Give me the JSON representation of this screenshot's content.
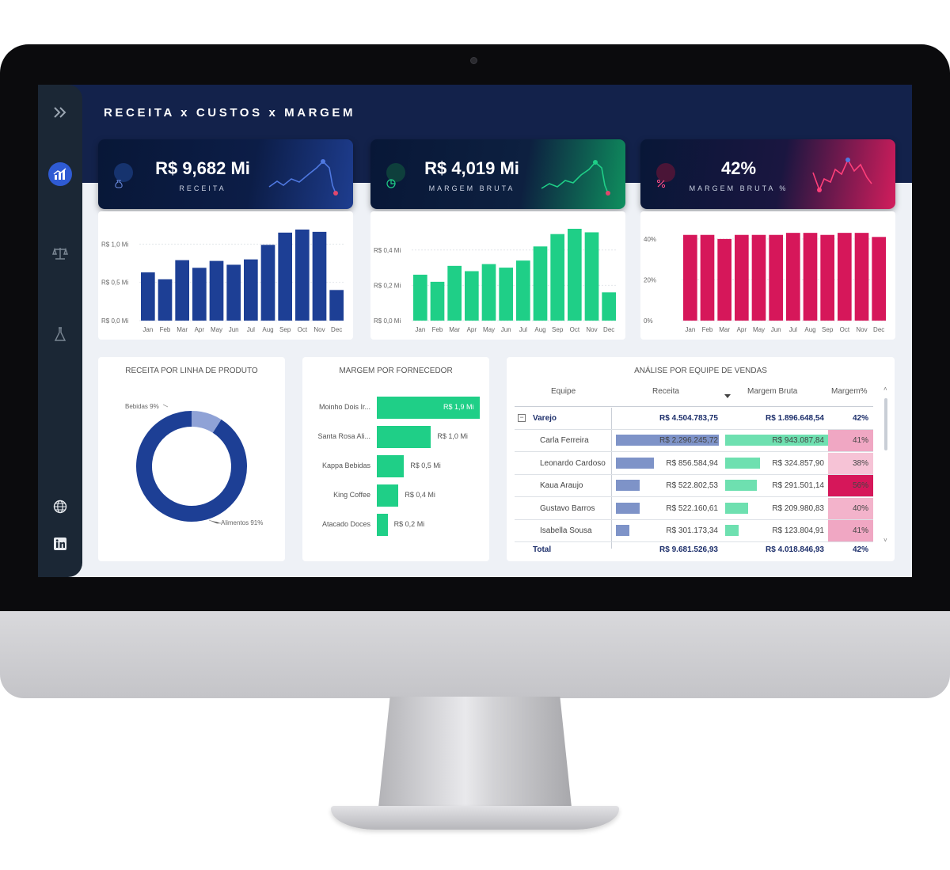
{
  "page": {
    "title": "RECEITA x CUSTOS x MARGEM"
  },
  "sidebar": {
    "items": [
      {
        "icon": "chevrons-right-icon"
      },
      {
        "icon": "bar-chart-icon",
        "active": true
      },
      {
        "icon": "scale-icon"
      },
      {
        "icon": "flask-icon"
      },
      {
        "icon": "globe-icon"
      },
      {
        "icon": "linkedin-icon"
      }
    ]
  },
  "kpis": {
    "receita": {
      "value": "R$ 9,682 Mi",
      "label": "RECEITA",
      "accent": "#2f5bd3",
      "icon": "money-bag-icon"
    },
    "margem": {
      "value": "R$ 4,019 Mi",
      "label": "MARGEM BRUTA",
      "accent": "#1fcf87",
      "icon": "pie-icon"
    },
    "percent": {
      "value": "42%",
      "label": "MARGEM BRUTA %",
      "accent": "#d6175a",
      "icon": "percent-icon"
    }
  },
  "chart_data": [
    {
      "type": "bar",
      "categories": [
        "Jan",
        "Feb",
        "Mar",
        "Apr",
        "May",
        "Jun",
        "Jul",
        "Aug",
        "Sep",
        "Oct",
        "Nov",
        "Dec"
      ],
      "values": [
        0.63,
        0.54,
        0.79,
        0.69,
        0.78,
        0.73,
        0.8,
        0.99,
        1.15,
        1.19,
        1.16,
        0.4
      ],
      "yticks": [
        "R$ 0,0 Mi",
        "R$ 0,5 Mi",
        "R$ 1,0 Mi"
      ],
      "ylim": [
        0,
        1.2
      ],
      "color": "#1d3f95"
    },
    {
      "type": "bar",
      "categories": [
        "Jan",
        "Feb",
        "Mar",
        "Apr",
        "May",
        "Jun",
        "Jul",
        "Aug",
        "Sep",
        "Oct",
        "Nov",
        "Dec"
      ],
      "values": [
        0.26,
        0.22,
        0.31,
        0.28,
        0.32,
        0.3,
        0.34,
        0.42,
        0.49,
        0.52,
        0.5,
        0.16
      ],
      "yticks": [
        "R$ 0,0 Mi",
        "R$ 0,2 Mi",
        "R$ 0,4 Mi"
      ],
      "ylim": [
        0,
        0.52
      ],
      "color": "#1fcf87"
    },
    {
      "type": "bar",
      "categories": [
        "Jan",
        "Feb",
        "Mar",
        "Apr",
        "May",
        "Jun",
        "Jul",
        "Aug",
        "Sep",
        "Oct",
        "Nov",
        "Dec"
      ],
      "values": [
        42,
        42,
        40,
        42,
        42,
        42,
        43,
        43,
        42,
        43,
        43,
        41
      ],
      "yticks": [
        "0%",
        "20%",
        "40%"
      ],
      "ylim": [
        0,
        45
      ],
      "color": "#d6175a"
    },
    {
      "type": "pie",
      "title": "RECEITA POR LINHA DE PRODUTO",
      "labels": [
        "Bebidas 9%",
        "Alimentos 91%"
      ],
      "values": [
        9,
        91
      ],
      "colors": [
        "#8fa2d6",
        "#1d3f95"
      ]
    },
    {
      "type": "bar",
      "title": "MARGEM POR FORNECEDOR",
      "categories": [
        "Moinho Dois Ir...",
        "Santa Rosa Ali...",
        "Kappa Bebidas",
        "King Coffee",
        "Atacado Doces"
      ],
      "values": [
        1.9,
        1.0,
        0.5,
        0.4,
        0.2
      ],
      "labels": [
        "R$ 1,9 Mi",
        "R$ 1,0 Mi",
        "R$ 0,5 Mi",
        "R$ 0,4 Mi",
        "R$ 0,2 Mi"
      ],
      "color": "#1fcf87"
    }
  ],
  "table": {
    "title": "ANÁLISE POR EQUIPE DE VENDAS",
    "headers": {
      "equipe": "Equipe",
      "receita": "Receita",
      "margem": "Margem Bruta",
      "pct": "Margem%"
    },
    "group": {
      "name": "Varejo",
      "receita": "R$ 4.504.783,75",
      "margem": "R$ 1.896.648,54",
      "pct": "42%"
    },
    "rows": [
      {
        "name": "Carla Ferreira",
        "receita": "R$ 2.296.245,72",
        "margem": "R$ 943.087,84",
        "pct": "41%",
        "rfrac": 1.0,
        "mfrac": 1.0,
        "pcolor": "#f0a7c3"
      },
      {
        "name": "Leonardo Cardoso",
        "receita": "R$ 856.584,94",
        "margem": "R$ 324.857,90",
        "pct": "38%",
        "rfrac": 0.37,
        "mfrac": 0.34,
        "pcolor": "#f6c3d6"
      },
      {
        "name": "Kaua Araujo",
        "receita": "R$ 522.802,53",
        "margem": "R$ 291.501,14",
        "pct": "56%",
        "rfrac": 0.23,
        "mfrac": 0.31,
        "pcolor": "#d6175a"
      },
      {
        "name": "Gustavo Barros",
        "receita": "R$ 522.160,61",
        "margem": "R$ 209.980,83",
        "pct": "40%",
        "rfrac": 0.23,
        "mfrac": 0.22,
        "pcolor": "#f3b3cb"
      },
      {
        "name": "Isabella Sousa",
        "receita": "R$ 301.173,34",
        "margem": "R$ 123.804,91",
        "pct": "41%",
        "rfrac": 0.13,
        "mfrac": 0.13,
        "pcolor": "#f0a7c3"
      }
    ],
    "total": {
      "name": "Total",
      "receita": "R$ 9.681.526,93",
      "margem": "R$ 4.018.846,93",
      "pct": "42%"
    }
  }
}
